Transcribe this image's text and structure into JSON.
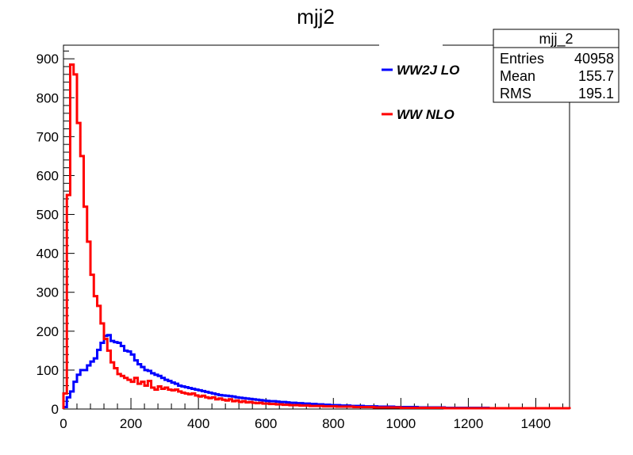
{
  "chart_data": {
    "type": "histogram-step",
    "title": "mjj2",
    "xlabel": "",
    "ylabel": "",
    "xlim": [
      0,
      1500
    ],
    "ylim": [
      0,
      935
    ],
    "x_ticks": [
      0,
      200,
      400,
      600,
      800,
      1000,
      1200,
      1400
    ],
    "y_ticks": [
      0,
      100,
      200,
      300,
      400,
      500,
      600,
      700,
      800,
      900
    ],
    "bin_width": 10,
    "stats_box": {
      "title": "mjj_2",
      "rows": [
        {
          "label": "Entries",
          "value": "40958"
        },
        {
          "label": "Mean",
          "value": "155.7"
        },
        {
          "label": "RMS",
          "value": "195.1"
        }
      ]
    },
    "legend": {
      "placement": "top-right",
      "entries": [
        {
          "label": "WW2J LO",
          "color": "#0000ff"
        },
        {
          "label": "WW NLO",
          "color": "#ff0000"
        }
      ]
    },
    "series": [
      {
        "name": "WW2J LO",
        "color": "#0000ff",
        "values": [
          5,
          30,
          45,
          70,
          88,
          100,
          100,
          112,
          122,
          130,
          152,
          170,
          188,
          190,
          175,
          172,
          170,
          162,
          150,
          148,
          140,
          125,
          115,
          108,
          100,
          98,
          92,
          88,
          85,
          80,
          75,
          72,
          68,
          65,
          60,
          58,
          56,
          54,
          52,
          50,
          48,
          46,
          44,
          42,
          40,
          38,
          36,
          35,
          34,
          33,
          32,
          30,
          29,
          28,
          27,
          26,
          25,
          24,
          23,
          22,
          21,
          20,
          20,
          19,
          18,
          18,
          17,
          16,
          16,
          15,
          15,
          14,
          14,
          13,
          13,
          12,
          12,
          11,
          11,
          10,
          10,
          10,
          9,
          9,
          9,
          8,
          8,
          8,
          8,
          7,
          7,
          7,
          7,
          6,
          6,
          6,
          6,
          6,
          5,
          5,
          5,
          5,
          5,
          5,
          5,
          4,
          4,
          4,
          4,
          4,
          4,
          4,
          4,
          3,
          3,
          3,
          3,
          3,
          3,
          3,
          3,
          3,
          3,
          3,
          3,
          3,
          2,
          2,
          2,
          2,
          2,
          2,
          2,
          2,
          2,
          2,
          2,
          2,
          2,
          2,
          2,
          2,
          2,
          2,
          2,
          2,
          2,
          2,
          2,
          2
        ]
      },
      {
        "name": "WW NLO",
        "color": "#ff0000",
        "values": [
          40,
          550,
          885,
          860,
          735,
          650,
          520,
          430,
          345,
          290,
          265,
          220,
          180,
          150,
          120,
          105,
          90,
          85,
          80,
          75,
          70,
          80,
          65,
          70,
          60,
          72,
          55,
          50,
          58,
          52,
          55,
          50,
          48,
          50,
          45,
          42,
          40,
          38,
          40,
          35,
          32,
          34,
          30,
          28,
          30,
          25,
          27,
          24,
          22,
          25,
          20,
          22,
          18,
          20,
          17,
          18,
          16,
          15,
          16,
          14,
          14,
          13,
          13,
          12,
          12,
          11,
          11,
          10,
          10,
          10,
          9,
          9,
          9,
          8,
          8,
          8,
          8,
          7,
          7,
          7,
          7,
          6,
          6,
          6,
          6,
          6,
          5,
          5,
          5,
          5,
          5,
          5,
          4,
          4,
          4,
          4,
          4,
          4,
          4,
          4,
          3,
          3,
          3,
          3,
          3,
          3,
          3,
          3,
          3,
          3,
          3,
          3,
          3,
          2,
          2,
          2,
          2,
          2,
          2,
          2,
          2,
          2,
          2,
          2,
          2,
          2,
          2,
          2,
          2,
          2,
          2,
          2,
          2,
          2,
          2,
          2,
          2,
          2,
          2,
          2,
          2,
          2,
          2,
          2,
          2,
          2,
          2,
          2,
          2,
          2
        ]
      }
    ]
  }
}
